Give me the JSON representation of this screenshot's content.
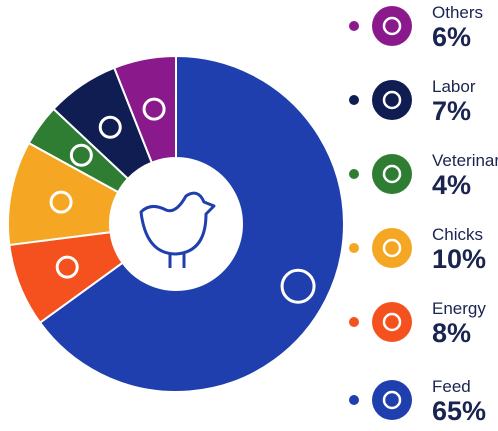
{
  "chart_data": {
    "type": "donut",
    "categories": [
      "Others",
      "Labor",
      "Veterinar",
      "Chicks",
      "Energy",
      "Feed"
    ],
    "values": [
      6,
      7,
      4,
      10,
      8,
      65
    ],
    "value_labels": [
      "6%",
      "7%",
      "4%",
      "10%",
      "8%",
      "65%"
    ],
    "colors": [
      "#8a1a8c",
      "#0f1d52",
      "#2f7d32",
      "#f5a623",
      "#f4511e",
      "#1f3fae"
    ]
  }
}
